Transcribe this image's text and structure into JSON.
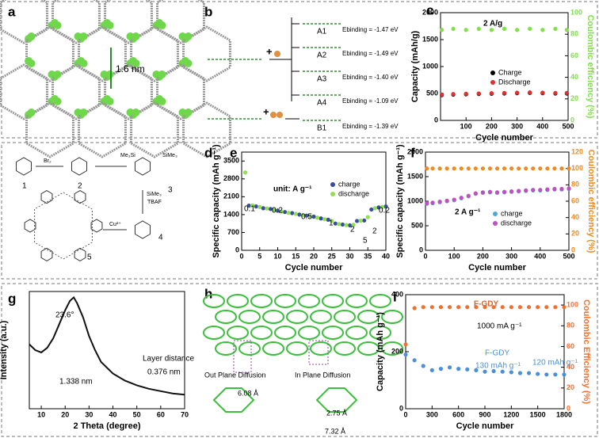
{
  "chart_data": [
    {
      "type": "scatter",
      "label": "c",
      "xlabel": "Cycle number",
      "ylabel": "Capacity (mAh/g)",
      "y2label": "Coulombic efficiency (%)",
      "xlim": [
        0,
        500
      ],
      "xticks": [
        100,
        200,
        300,
        400,
        500
      ],
      "ylim": [
        0,
        2000
      ],
      "yticks": [
        0,
        500,
        1000,
        1500,
        2000
      ],
      "y2lim": [
        0,
        100
      ],
      "y2ticks": [
        0,
        20,
        40,
        60,
        80,
        100
      ],
      "annotations": [
        "2 A/g"
      ],
      "series": [
        {
          "name": "Charge",
          "color": "#000000",
          "x": [
            5,
            50,
            100,
            150,
            200,
            250,
            300,
            350,
            400,
            450,
            495
          ],
          "values": [
            470,
            480,
            485,
            490,
            495,
            500,
            505,
            510,
            505,
            500,
            500
          ]
        },
        {
          "name": "Discharge",
          "color": "#e03030",
          "x": [
            5,
            50,
            100,
            150,
            200,
            250,
            300,
            350,
            400,
            450,
            495
          ],
          "values": [
            480,
            490,
            495,
            500,
            505,
            510,
            515,
            520,
            515,
            510,
            510
          ]
        },
        {
          "color": "#7fe04a",
          "axis": "y2",
          "x": [
            5,
            50,
            100,
            150,
            200,
            250,
            300,
            350,
            400,
            450,
            495
          ],
          "values": [
            84,
            85,
            84,
            85,
            84,
            85,
            84,
            85,
            84,
            85,
            84
          ]
        }
      ]
    },
    {
      "type": "scatter",
      "label": "e",
      "xlabel": "Cycle number",
      "ylabel": "Specific capacity (mAh g⁻¹)",
      "xlim": [
        0,
        40
      ],
      "xticks": [
        0,
        5,
        10,
        15,
        20,
        25,
        30,
        35,
        40
      ],
      "ylim": [
        0,
        3850
      ],
      "yticks": [
        0,
        700,
        1400,
        2100,
        2800,
        3500
      ],
      "annotations": [
        "unit: A g⁻¹",
        "0.1",
        "0.2",
        "0.5",
        "1",
        "2",
        "5",
        "2",
        "0.2"
      ],
      "series": [
        {
          "name": "charge",
          "color": "#3a4aa0",
          "x": [
            2,
            4,
            6,
            8,
            10,
            12,
            14,
            16,
            18,
            20,
            22,
            24,
            26,
            28,
            30,
            32,
            34,
            36,
            38,
            40
          ],
          "values": [
            1750,
            1720,
            1650,
            1620,
            1560,
            1500,
            1460,
            1400,
            1360,
            1320,
            1250,
            1200,
            1050,
            1010,
            980,
            1150,
            1170,
            1600,
            1680,
            1720
          ]
        },
        {
          "name": "discharge",
          "color": "#8fe050",
          "x": [
            1,
            3,
            5,
            7,
            9,
            11,
            13,
            15,
            17,
            19,
            21,
            23,
            25,
            27,
            29,
            31,
            33,
            35,
            37,
            39
          ],
          "values": [
            3050,
            1760,
            1700,
            1640,
            1590,
            1520,
            1470,
            1430,
            1380,
            1340,
            1280,
            1220,
            1150,
            1030,
            990,
            1000,
            1160,
            1300,
            1650,
            1700
          ]
        }
      ]
    },
    {
      "type": "scatter",
      "label": "f",
      "xlabel": "Cycle number",
      "ylabel": "Specific capacity (mAh g⁻¹)",
      "y2label": "Coulombic efficiency (%)",
      "xlim": [
        0,
        500
      ],
      "xticks": [
        0,
        100,
        200,
        300,
        400,
        500
      ],
      "ylim": [
        0,
        2000
      ],
      "yticks": [
        0,
        500,
        1000,
        1500,
        2000
      ],
      "y2lim": [
        0,
        120
      ],
      "y2ticks": [
        0,
        20,
        40,
        60,
        80,
        100,
        120
      ],
      "annotations": [
        "2 A g⁻¹"
      ],
      "series": [
        {
          "name": "charge",
          "color": "#49a9e0",
          "x": [
            5,
            25,
            50,
            75,
            100,
            125,
            150,
            175,
            200,
            225,
            250,
            275,
            300,
            325,
            350,
            375,
            400,
            425,
            450,
            475,
            500
          ],
          "values": [
            950,
            960,
            980,
            1000,
            1020,
            1060,
            1100,
            1150,
            1170,
            1180,
            1170,
            1180,
            1190,
            1200,
            1210,
            1220,
            1220,
            1230,
            1240,
            1240,
            1250
          ]
        },
        {
          "name": "discharge",
          "color": "#c050c0",
          "x": [
            5,
            25,
            50,
            75,
            100,
            125,
            150,
            175,
            200,
            225,
            250,
            275,
            300,
            325,
            350,
            375,
            400,
            425,
            450,
            475,
            500
          ],
          "values": [
            960,
            970,
            990,
            1010,
            1030,
            1070,
            1110,
            1160,
            1180,
            1190,
            1180,
            1190,
            1200,
            1210,
            1220,
            1230,
            1230,
            1240,
            1250,
            1250,
            1260
          ]
        },
        {
          "color": "#f08a20",
          "axis": "y2",
          "x": [
            5,
            25,
            50,
            75,
            100,
            125,
            150,
            175,
            200,
            225,
            250,
            275,
            300,
            325,
            350,
            375,
            400,
            425,
            450,
            475,
            500
          ],
          "values": [
            100,
            100,
            100,
            100,
            100,
            100,
            100,
            100,
            100,
            100,
            100,
            100,
            100,
            100,
            100,
            100,
            100,
            100,
            100,
            100,
            100
          ]
        }
      ]
    },
    {
      "type": "line",
      "label": "g",
      "xlabel": "2 Theta (degree)",
      "ylabel": "Intensity (a.u.)",
      "xlim": [
        5,
        70
      ],
      "xticks": [
        10,
        20,
        30,
        40,
        50,
        60,
        70
      ],
      "ylim": [
        0,
        100
      ],
      "annotations": [
        "23.6°",
        "Layer distance",
        "0.376 nm",
        "1.338 nm"
      ],
      "series": [
        {
          "color": "#111111",
          "x": [
            5,
            7.5,
            10,
            12.5,
            15,
            17.5,
            20,
            22,
            23.6,
            25,
            27.5,
            30,
            32.5,
            35,
            40,
            45,
            50,
            55,
            60,
            65,
            70
          ],
          "values": [
            55,
            50,
            48,
            52,
            60,
            72,
            84,
            92,
            95,
            90,
            78,
            62,
            50,
            40,
            30,
            24,
            20,
            17,
            15,
            13,
            12
          ]
        }
      ]
    },
    {
      "type": "scatter",
      "label": "i",
      "xlabel": "Cycle number",
      "ylabel": "Capacity (mAh g⁻¹)",
      "y2label": "Coulombic Efficiency (%)",
      "xlim": [
        0,
        1800
      ],
      "xticks": [
        0,
        300,
        600,
        900,
        1200,
        1500,
        1800
      ],
      "ylim": [
        0,
        400
      ],
      "yticks": [
        0,
        200,
        400
      ],
      "y2lim": [
        0,
        110
      ],
      "y2ticks": [
        0,
        20,
        40,
        60,
        80,
        100
      ],
      "annotations": [
        "F-GDY",
        "1000 mA g⁻¹",
        "F-GDY",
        "130 mAh g⁻¹",
        "120 mAh g⁻¹"
      ],
      "series": [
        {
          "color": "#4a90d9",
          "x": [
            0,
            100,
            200,
            300,
            400,
            500,
            600,
            700,
            800,
            900,
            1000,
            1100,
            1200,
            1300,
            1400,
            1500,
            1600,
            1700,
            1800
          ],
          "values": [
            190,
            170,
            150,
            135,
            140,
            145,
            140,
            138,
            135,
            130,
            132,
            130,
            128,
            125,
            125,
            122,
            120,
            120,
            120
          ]
        },
        {
          "color": "#f07030",
          "axis": "y2",
          "x": [
            0,
            100,
            200,
            300,
            400,
            500,
            600,
            700,
            800,
            900,
            1000,
            1100,
            1200,
            1300,
            1400,
            1500,
            1600,
            1700,
            1800
          ],
          "values": [
            62,
            97,
            98,
            98,
            98,
            98,
            98,
            98,
            98,
            98,
            98,
            98,
            98,
            98,
            98,
            98,
            98,
            98,
            98
          ]
        }
      ]
    }
  ],
  "diagrams": {
    "a": {
      "label": "a",
      "distance": "1.6 nm"
    },
    "b": {
      "label": "b",
      "items": [
        "A1",
        "A2",
        "A3",
        "A4",
        "B1"
      ],
      "energies": [
        "Ebinding = -1.47 eV",
        "Ebinding = -1.49 eV",
        "Ebinding = -1.40 eV",
        "Ebinding = -1.09 eV",
        "Ebinding = -1.39 eV"
      ],
      "plus": "+"
    },
    "d": {
      "label": "d",
      "compounds": [
        "1",
        "2",
        "3",
        "4",
        "5"
      ],
      "reagents": [
        "Br₂",
        "TBAF",
        "Cu²⁺"
      ],
      "groups": [
        "Me₃Si",
        "SiMe₃",
        "SiMe₃"
      ]
    },
    "h": {
      "label": "h",
      "texts": [
        "Out Plane Diffusion",
        "In Plane Diffusion",
        "6.08 Å",
        "2.75 Å",
        "7.32 Å"
      ]
    }
  }
}
